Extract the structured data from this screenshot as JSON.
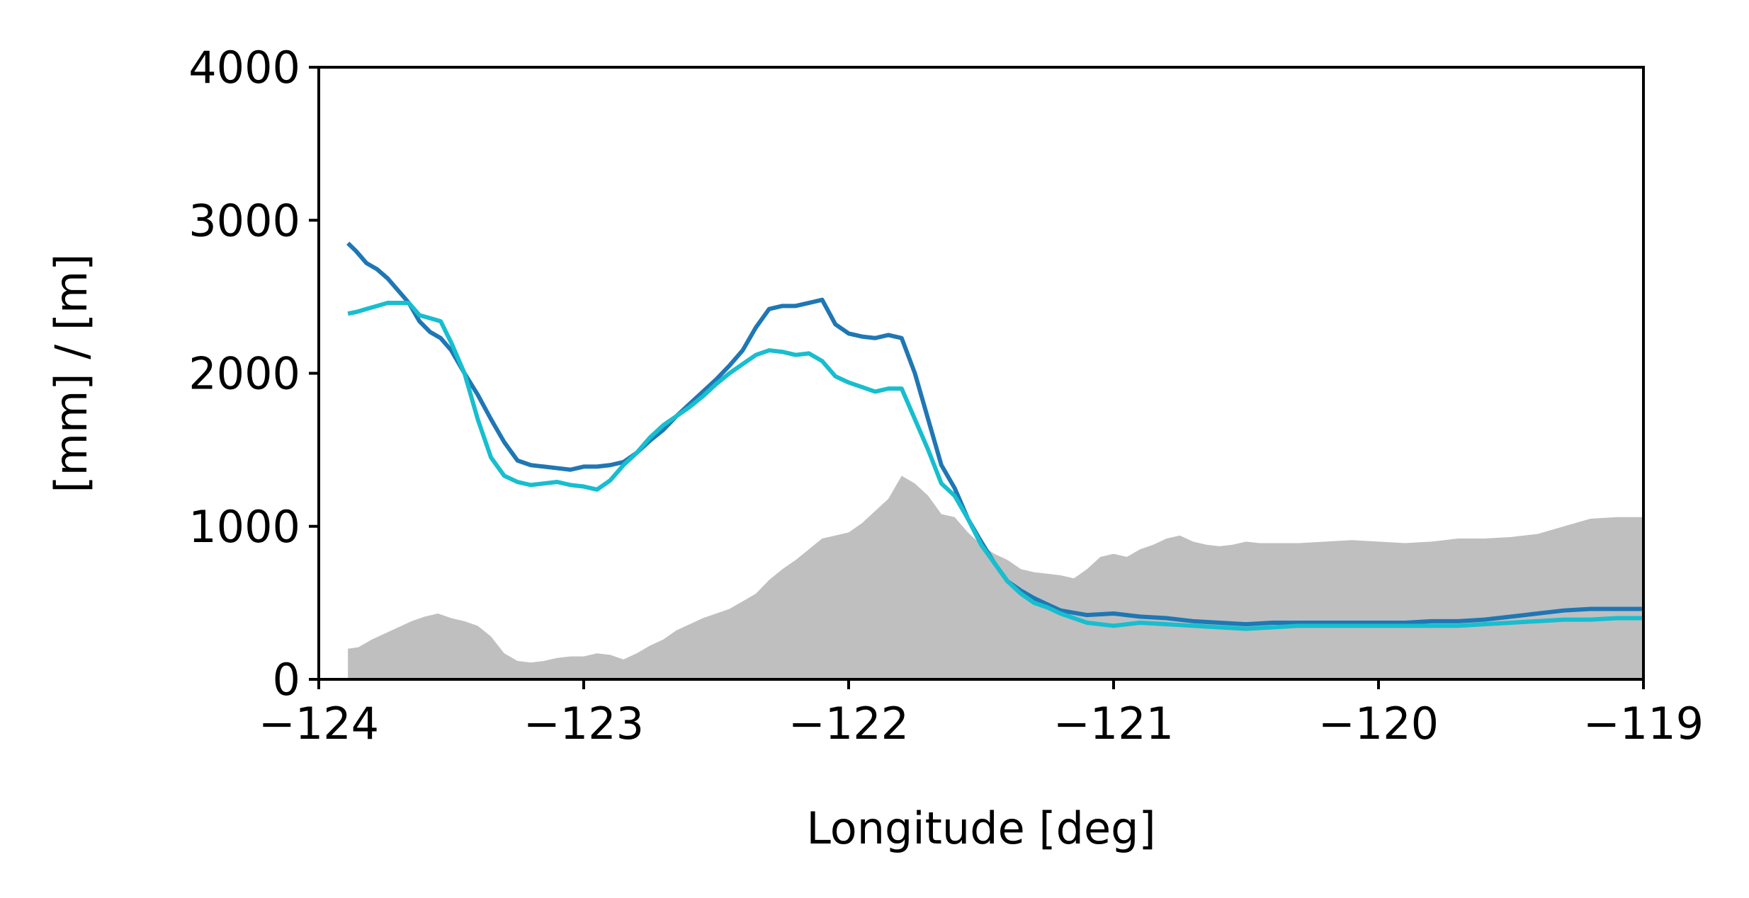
{
  "chart_data": {
    "type": "area",
    "title": "",
    "xlabel": "Longitude [deg]",
    "ylabel": "[mm] / [m]",
    "xlim": [
      -124,
      -119
    ],
    "ylim": [
      0,
      4000
    ],
    "xticks": [
      -124,
      -123,
      -122,
      -121,
      -120,
      -119
    ],
    "xtick_labels": [
      "−124",
      "−123",
      "−122",
      "−121",
      "−120",
      "−119"
    ],
    "yticks": [
      0,
      1000,
      2000,
      3000,
      4000
    ],
    "ytick_labels": [
      "0",
      "1000",
      "2000",
      "3000",
      "4000"
    ],
    "grid": false,
    "legend": "none",
    "colors": {
      "series_dark": "#1f77b4",
      "series_light": "#17becf",
      "terrain": "#bfbfbf",
      "axes": "#000000"
    },
    "terrain": {
      "x": [
        -123.89,
        -123.85,
        -123.8,
        -123.75,
        -123.7,
        -123.65,
        -123.6,
        -123.55,
        -123.5,
        -123.45,
        -123.4,
        -123.35,
        -123.3,
        -123.25,
        -123.2,
        -123.15,
        -123.1,
        -123.05,
        -123.0,
        -122.95,
        -122.9,
        -122.85,
        -122.8,
        -122.75,
        -122.7,
        -122.65,
        -122.6,
        -122.55,
        -122.5,
        -122.45,
        -122.4,
        -122.35,
        -122.3,
        -122.25,
        -122.2,
        -122.15,
        -122.1,
        -122.05,
        -122.0,
        -121.95,
        -121.9,
        -121.85,
        -121.8,
        -121.75,
        -121.7,
        -121.65,
        -121.6,
        -121.55,
        -121.5,
        -121.45,
        -121.4,
        -121.35,
        -121.3,
        -121.25,
        -121.2,
        -121.15,
        -121.1,
        -121.05,
        -121.0,
        -120.95,
        -120.9,
        -120.85,
        -120.8,
        -120.75,
        -120.7,
        -120.65,
        -120.6,
        -120.55,
        -120.5,
        -120.45,
        -120.4,
        -120.3,
        -120.2,
        -120.1,
        -120.0,
        -119.9,
        -119.8,
        -119.7,
        -119.6,
        -119.5,
        -119.4,
        -119.3,
        -119.2,
        -119.1,
        -119.0
      ],
      "values": [
        200,
        210,
        260,
        300,
        340,
        380,
        410,
        430,
        400,
        380,
        350,
        280,
        170,
        120,
        110,
        120,
        140,
        150,
        150,
        170,
        160,
        130,
        170,
        220,
        260,
        320,
        360,
        400,
        430,
        460,
        510,
        560,
        650,
        720,
        780,
        850,
        920,
        940,
        960,
        1020,
        1100,
        1180,
        1330,
        1280,
        1200,
        1080,
        1060,
        960,
        880,
        820,
        780,
        720,
        700,
        690,
        680,
        660,
        720,
        800,
        820,
        800,
        850,
        880,
        920,
        940,
        900,
        880,
        870,
        880,
        900,
        890,
        890,
        890,
        900,
        910,
        900,
        890,
        900,
        920,
        920,
        930,
        950,
        1000,
        1050,
        1060,
        1060
      ]
    },
    "series": [
      {
        "x": [
          -123.89,
          -123.86,
          -123.82,
          -123.78,
          -123.74,
          -123.7,
          -123.66,
          -123.62,
          -123.58,
          -123.54,
          -123.5,
          -123.45,
          -123.4,
          -123.35,
          -123.3,
          -123.25,
          -123.2,
          -123.15,
          -123.1,
          -123.05,
          -123.0,
          -122.95,
          -122.9,
          -122.85,
          -122.8,
          -122.75,
          -122.7,
          -122.65,
          -122.6,
          -122.55,
          -122.5,
          -122.45,
          -122.4,
          -122.35,
          -122.3,
          -122.25,
          -122.2,
          -122.15,
          -122.1,
          -122.05,
          -122.0,
          -121.95,
          -121.9,
          -121.85,
          -121.8,
          -121.75,
          -121.7,
          -121.65,
          -121.6,
          -121.55,
          -121.5,
          -121.45,
          -121.4,
          -121.35,
          -121.3,
          -121.25,
          -121.2,
          -121.1,
          -121.0,
          -120.9,
          -120.8,
          -120.7,
          -120.6,
          -120.5,
          -120.4,
          -120.3,
          -120.2,
          -120.1,
          -120.0,
          -119.9,
          -119.8,
          -119.7,
          -119.6,
          -119.5,
          -119.4,
          -119.3,
          -119.2,
          -119.1,
          -119.0
        ],
        "values": [
          2850,
          2800,
          2720,
          2680,
          2620,
          2540,
          2460,
          2340,
          2270,
          2230,
          2150,
          2000,
          1860,
          1700,
          1550,
          1430,
          1400,
          1390,
          1380,
          1370,
          1390,
          1390,
          1400,
          1420,
          1480,
          1560,
          1630,
          1720,
          1800,
          1880,
          1960,
          2050,
          2150,
          2300,
          2420,
          2440,
          2440,
          2460,
          2480,
          2320,
          2260,
          2240,
          2230,
          2250,
          2230,
          2000,
          1700,
          1400,
          1250,
          1050,
          900,
          760,
          640,
          580,
          530,
          490,
          450,
          420,
          430,
          410,
          400,
          380,
          370,
          360,
          370,
          370,
          370,
          370,
          370,
          370,
          380,
          380,
          390,
          410,
          430,
          450,
          460,
          460,
          460
        ]
      },
      {
        "x": [
          -123.89,
          -123.86,
          -123.82,
          -123.78,
          -123.74,
          -123.7,
          -123.66,
          -123.62,
          -123.58,
          -123.54,
          -123.5,
          -123.45,
          -123.4,
          -123.35,
          -123.3,
          -123.25,
          -123.2,
          -123.15,
          -123.1,
          -123.05,
          -123.0,
          -122.95,
          -122.9,
          -122.85,
          -122.8,
          -122.75,
          -122.7,
          -122.65,
          -122.6,
          -122.55,
          -122.5,
          -122.45,
          -122.4,
          -122.35,
          -122.3,
          -122.25,
          -122.2,
          -122.15,
          -122.1,
          -122.05,
          -122.0,
          -121.95,
          -121.9,
          -121.85,
          -121.8,
          -121.75,
          -121.7,
          -121.65,
          -121.6,
          -121.55,
          -121.5,
          -121.45,
          -121.4,
          -121.35,
          -121.3,
          -121.25,
          -121.2,
          -121.1,
          -121.0,
          -120.9,
          -120.8,
          -120.7,
          -120.6,
          -120.5,
          -120.4,
          -120.3,
          -120.2,
          -120.1,
          -120.0,
          -119.9,
          -119.8,
          -119.7,
          -119.6,
          -119.5,
          -119.4,
          -119.3,
          -119.2,
          -119.1,
          -119.0
        ],
        "values": [
          2390,
          2400,
          2420,
          2440,
          2460,
          2460,
          2460,
          2380,
          2360,
          2340,
          2200,
          2000,
          1700,
          1450,
          1330,
          1290,
          1270,
          1280,
          1290,
          1270,
          1260,
          1240,
          1300,
          1400,
          1480,
          1580,
          1660,
          1720,
          1780,
          1850,
          1930,
          2000,
          2060,
          2120,
          2150,
          2140,
          2120,
          2130,
          2080,
          1980,
          1940,
          1910,
          1880,
          1900,
          1900,
          1700,
          1500,
          1280,
          1200,
          1050,
          880,
          760,
          640,
          560,
          500,
          470,
          430,
          370,
          350,
          370,
          360,
          350,
          340,
          330,
          340,
          350,
          350,
          350,
          350,
          350,
          350,
          350,
          360,
          370,
          380,
          390,
          390,
          400,
          400
        ]
      }
    ]
  }
}
